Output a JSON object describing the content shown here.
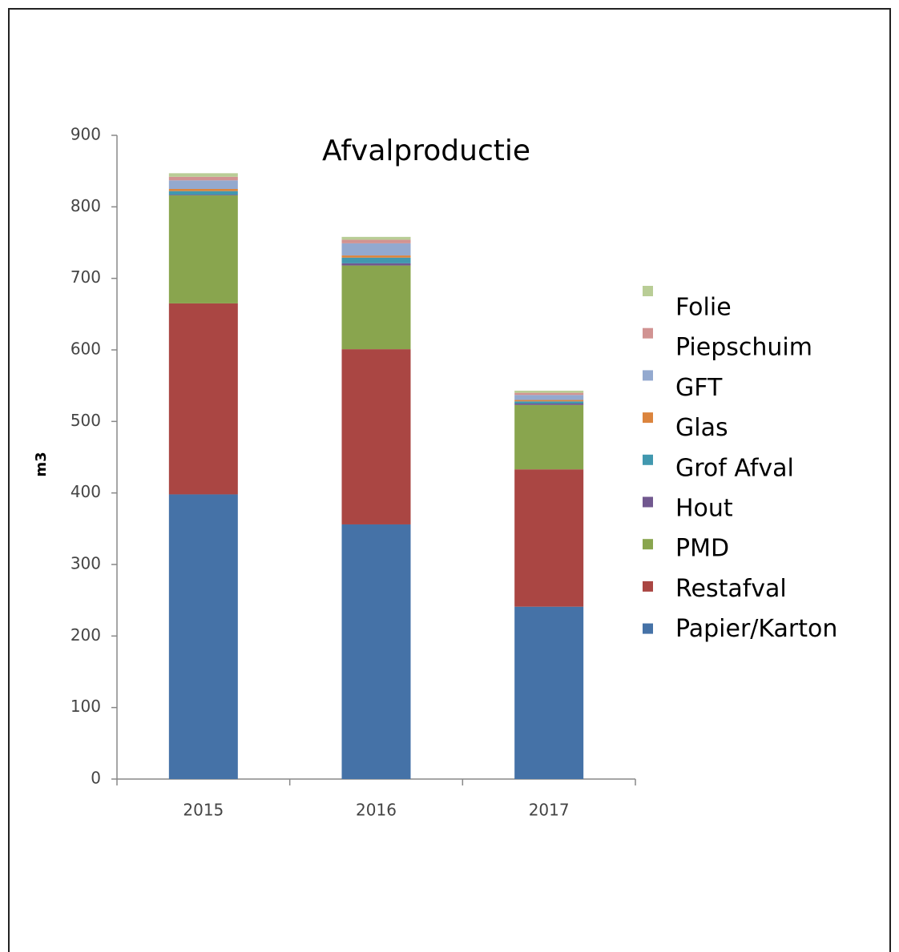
{
  "chart_data": {
    "type": "stacked_bar",
    "title": "Afvalproductie",
    "y_label": "m3",
    "categories": [
      "2015",
      "2016",
      "2017"
    ],
    "series": [
      {
        "name": "Papier/Karton",
        "color": "#4572a7",
        "values": [
          398,
          356,
          241
        ]
      },
      {
        "name": "Restafval",
        "color": "#aa4643",
        "values": [
          267,
          245,
          192
        ]
      },
      {
        "name": "PMD",
        "color": "#89a54e",
        "values": [
          151,
          117,
          90
        ]
      },
      {
        "name": "Hout",
        "color": "#71588f",
        "values": [
          1,
          3,
          2
        ]
      },
      {
        "name": "Grof Afval",
        "color": "#4198af",
        "values": [
          5,
          8,
          3
        ]
      },
      {
        "name": "Glas",
        "color": "#db843d",
        "values": [
          3,
          3,
          2
        ]
      },
      {
        "name": "GFT",
        "color": "#93a9cf",
        "values": [
          12,
          17,
          7
        ]
      },
      {
        "name": "Piepschuim",
        "color": "#d19392",
        "values": [
          5,
          5,
          3
        ]
      },
      {
        "name": "Folie",
        "color": "#b9cd96",
        "values": [
          5,
          4,
          3
        ]
      }
    ],
    "ylim": [
      0,
      900
    ],
    "yticks": [
      0,
      100,
      200,
      300,
      400,
      500,
      600,
      700,
      800,
      900
    ],
    "grid": false,
    "legend": "right"
  }
}
